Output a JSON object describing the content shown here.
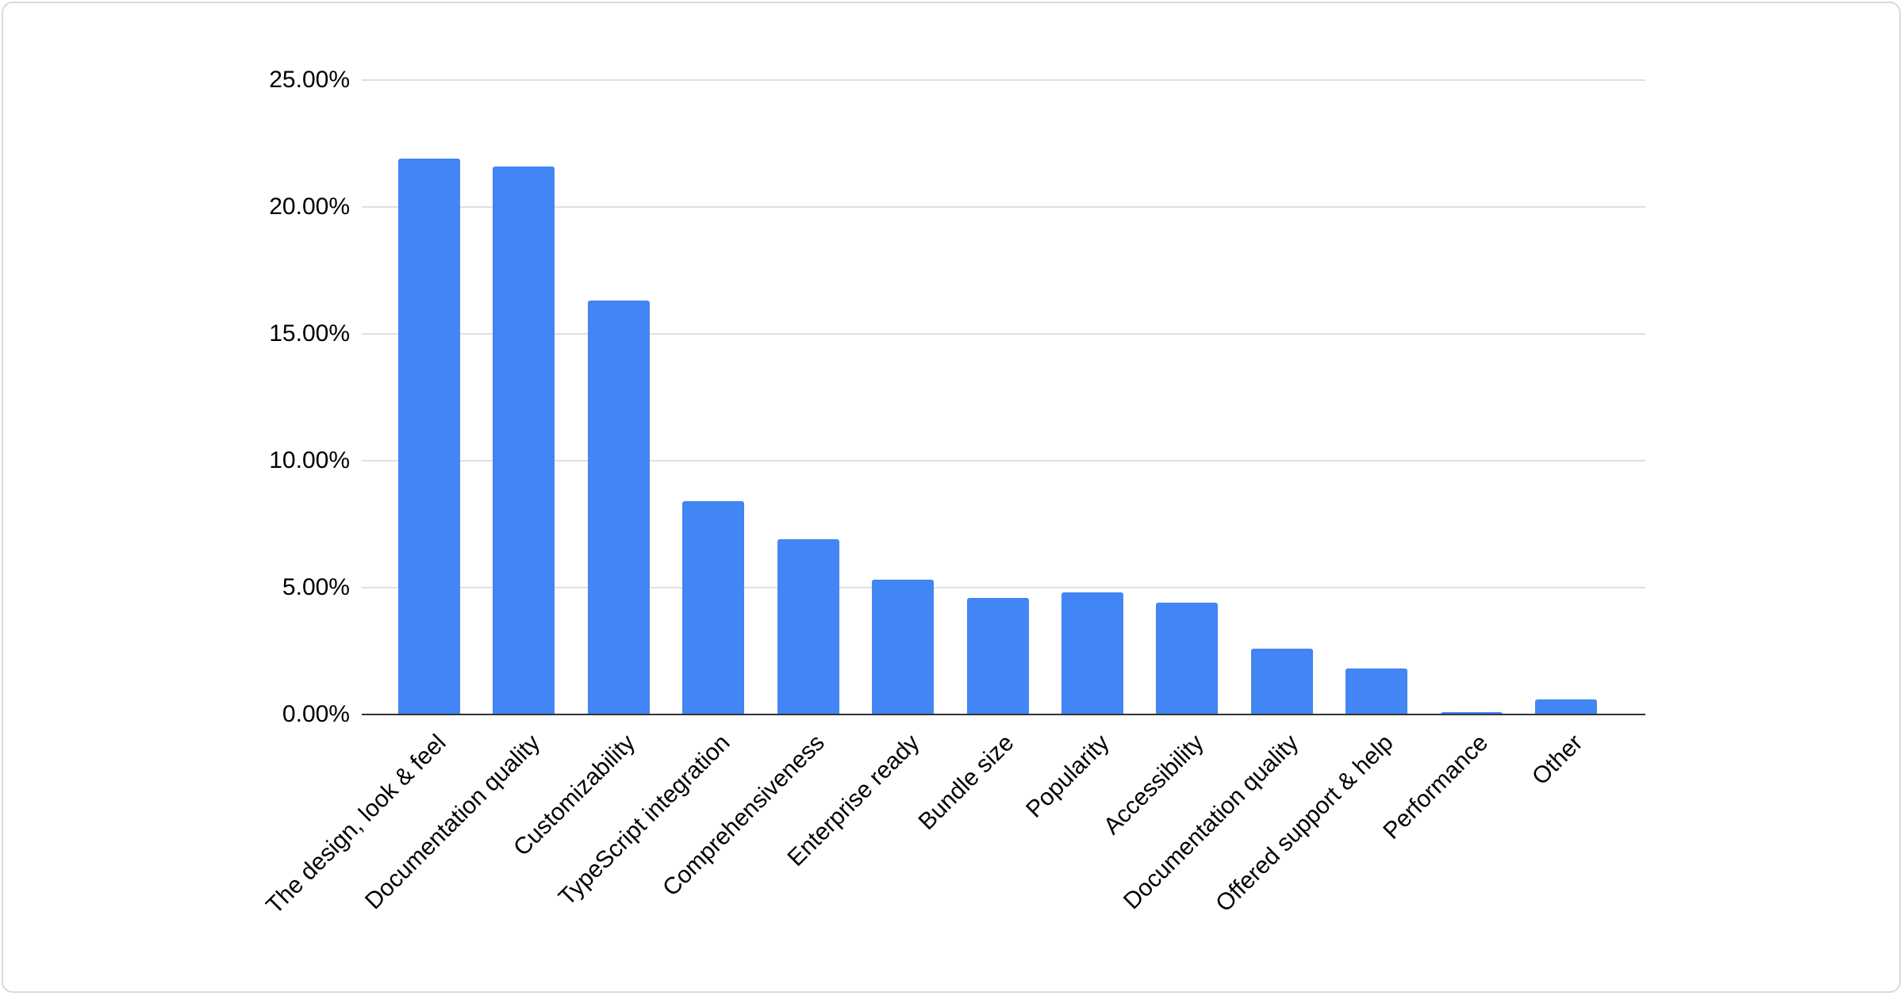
{
  "card": {
    "background": "#ffffff",
    "border_color": "#d8dadd"
  },
  "chart_data": {
    "type": "bar",
    "title": "",
    "xlabel": "",
    "ylabel": "",
    "unit": "%",
    "categories": [
      "The design, look & feel",
      "Documentation quality",
      "Customizability",
      "TypeScript integration",
      "Comprehensiveness",
      "Enterprise ready",
      "Bundle size",
      "Popularity",
      "Accessibility",
      "Documentation quality",
      "Offered support & help",
      "Performance",
      "Other"
    ],
    "values": [
      21.9,
      21.6,
      16.3,
      8.4,
      6.9,
      5.3,
      4.6,
      4.8,
      4.4,
      2.6,
      1.8,
      0.1,
      0.6
    ],
    "ylim": [
      0,
      25
    ],
    "ytick_step": 5,
    "ytick_labels": [
      "0.00%",
      "5.00%",
      "10.00%",
      "15.00%",
      "20.00%",
      "25.00%"
    ],
    "grid": true,
    "legend": "none",
    "colors": {
      "bar": "#4285f4",
      "gridline": "#e0e0e0",
      "axis_line": "#333333",
      "text": "#000000"
    }
  }
}
